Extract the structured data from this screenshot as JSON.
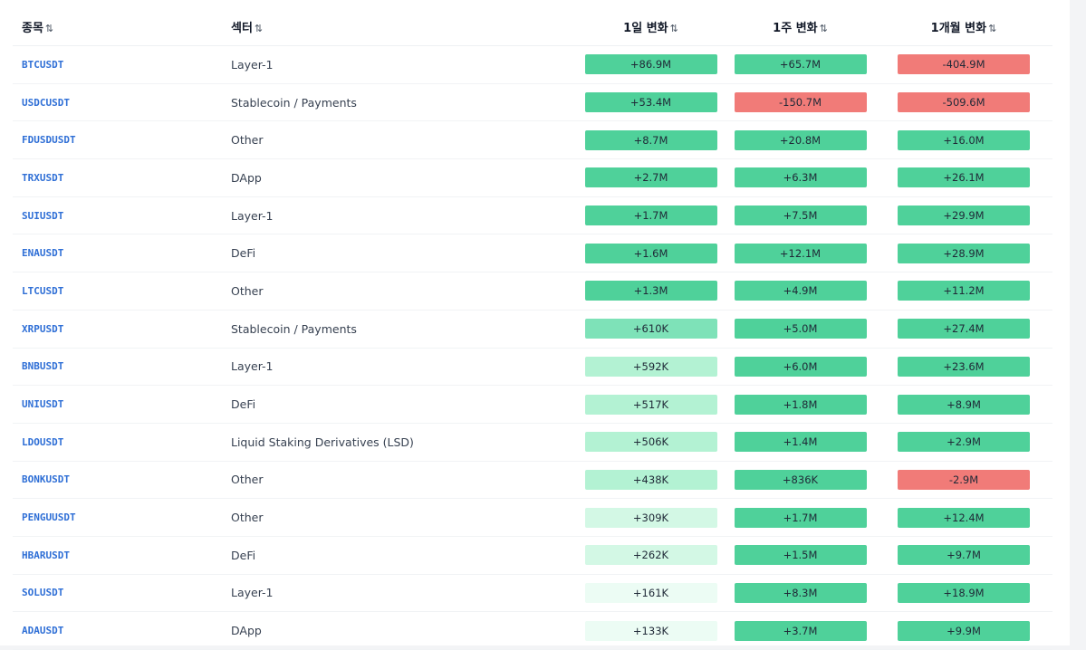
{
  "table": {
    "headers": {
      "symbol": "종목",
      "sector": "섹터",
      "d1": "1일 변화",
      "w1": "1주 변화",
      "m1": "1개월 변화",
      "sort_glyph": "⇅"
    },
    "colors": {
      "strong_green": "#4fd19a",
      "medium_green": "#7ee2b8",
      "light_green": "#b3f2d3",
      "pale_green": "#d3f8e5",
      "faint_green": "#ecfcf4",
      "red": "#f17b78",
      "symbol_link": "#2f6fd6"
    },
    "rows": [
      {
        "symbol": "BTCUSDT",
        "sector": "Layer-1",
        "d1": "+86.9M",
        "w1": "+65.7M",
        "m1": "-404.9M",
        "d1_tone": "g1",
        "w1_tone": "g1",
        "m1_tone": "r1"
      },
      {
        "symbol": "USDCUSDT",
        "sector": "Stablecoin / Payments",
        "d1": "+53.4M",
        "w1": "-150.7M",
        "m1": "-509.6M",
        "d1_tone": "g1",
        "w1_tone": "r1",
        "m1_tone": "r1"
      },
      {
        "symbol": "FDUSDUSDT",
        "sector": "Other",
        "d1": "+8.7M",
        "w1": "+20.8M",
        "m1": "+16.0M",
        "d1_tone": "g1",
        "w1_tone": "g1",
        "m1_tone": "g1"
      },
      {
        "symbol": "TRXUSDT",
        "sector": "DApp",
        "d1": "+2.7M",
        "w1": "+6.3M",
        "m1": "+26.1M",
        "d1_tone": "g1",
        "w1_tone": "g1",
        "m1_tone": "g1"
      },
      {
        "symbol": "SUIUSDT",
        "sector": "Layer-1",
        "d1": "+1.7M",
        "w1": "+7.5M",
        "m1": "+29.9M",
        "d1_tone": "g1",
        "w1_tone": "g1",
        "m1_tone": "g1"
      },
      {
        "symbol": "ENAUSDT",
        "sector": "DeFi",
        "d1": "+1.6M",
        "w1": "+12.1M",
        "m1": "+28.9M",
        "d1_tone": "g1",
        "w1_tone": "g1",
        "m1_tone": "g1"
      },
      {
        "symbol": "LTCUSDT",
        "sector": "Other",
        "d1": "+1.3M",
        "w1": "+4.9M",
        "m1": "+11.2M",
        "d1_tone": "g1",
        "w1_tone": "g1",
        "m1_tone": "g1"
      },
      {
        "symbol": "XRPUSDT",
        "sector": "Stablecoin / Payments",
        "d1": "+610K",
        "w1": "+5.0M",
        "m1": "+27.4M",
        "d1_tone": "g2",
        "w1_tone": "g1",
        "m1_tone": "g1"
      },
      {
        "symbol": "BNBUSDT",
        "sector": "Layer-1",
        "d1": "+592K",
        "w1": "+6.0M",
        "m1": "+23.6M",
        "d1_tone": "g3",
        "w1_tone": "g1",
        "m1_tone": "g1"
      },
      {
        "symbol": "UNIUSDT",
        "sector": "DeFi",
        "d1": "+517K",
        "w1": "+1.8M",
        "m1": "+8.9M",
        "d1_tone": "g3",
        "w1_tone": "g1",
        "m1_tone": "g1"
      },
      {
        "symbol": "LDOUSDT",
        "sector": "Liquid Staking Derivatives (LSD)",
        "d1": "+506K",
        "w1": "+1.4M",
        "m1": "+2.9M",
        "d1_tone": "g3",
        "w1_tone": "g1",
        "m1_tone": "g1"
      },
      {
        "symbol": "BONKUSDT",
        "sector": "Other",
        "d1": "+438K",
        "w1": "+836K",
        "m1": "-2.9M",
        "d1_tone": "g3",
        "w1_tone": "g1",
        "m1_tone": "r1"
      },
      {
        "symbol": "PENGUUSDT",
        "sector": "Other",
        "d1": "+309K",
        "w1": "+1.7M",
        "m1": "+12.4M",
        "d1_tone": "g4",
        "w1_tone": "g1",
        "m1_tone": "g1"
      },
      {
        "symbol": "HBARUSDT",
        "sector": "DeFi",
        "d1": "+262K",
        "w1": "+1.5M",
        "m1": "+9.7M",
        "d1_tone": "g4",
        "w1_tone": "g1",
        "m1_tone": "g1"
      },
      {
        "symbol": "SOLUSDT",
        "sector": "Layer-1",
        "d1": "+161K",
        "w1": "+8.3M",
        "m1": "+18.9M",
        "d1_tone": "g5",
        "w1_tone": "g1",
        "m1_tone": "g1"
      },
      {
        "symbol": "ADAUSDT",
        "sector": "DApp",
        "d1": "+133K",
        "w1": "+3.7M",
        "m1": "+9.9M",
        "d1_tone": "g5",
        "w1_tone": "g1",
        "m1_tone": "g1"
      }
    ]
  }
}
